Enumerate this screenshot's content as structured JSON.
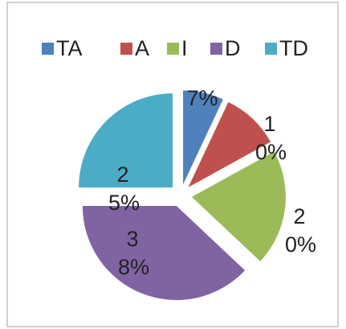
{
  "chart_data": {
    "type": "pie",
    "categories": [
      "TA",
      "A",
      "I",
      "D",
      "TD"
    ],
    "values": [
      7,
      10,
      20,
      38,
      25
    ],
    "value_labels": [
      "7%",
      "10%",
      "20%",
      "38%",
      "25%"
    ],
    "colors": [
      "#4f81bd",
      "#c0504d",
      "#9bbb59",
      "#8064a2",
      "#4bacc6"
    ],
    "legend": "top"
  }
}
